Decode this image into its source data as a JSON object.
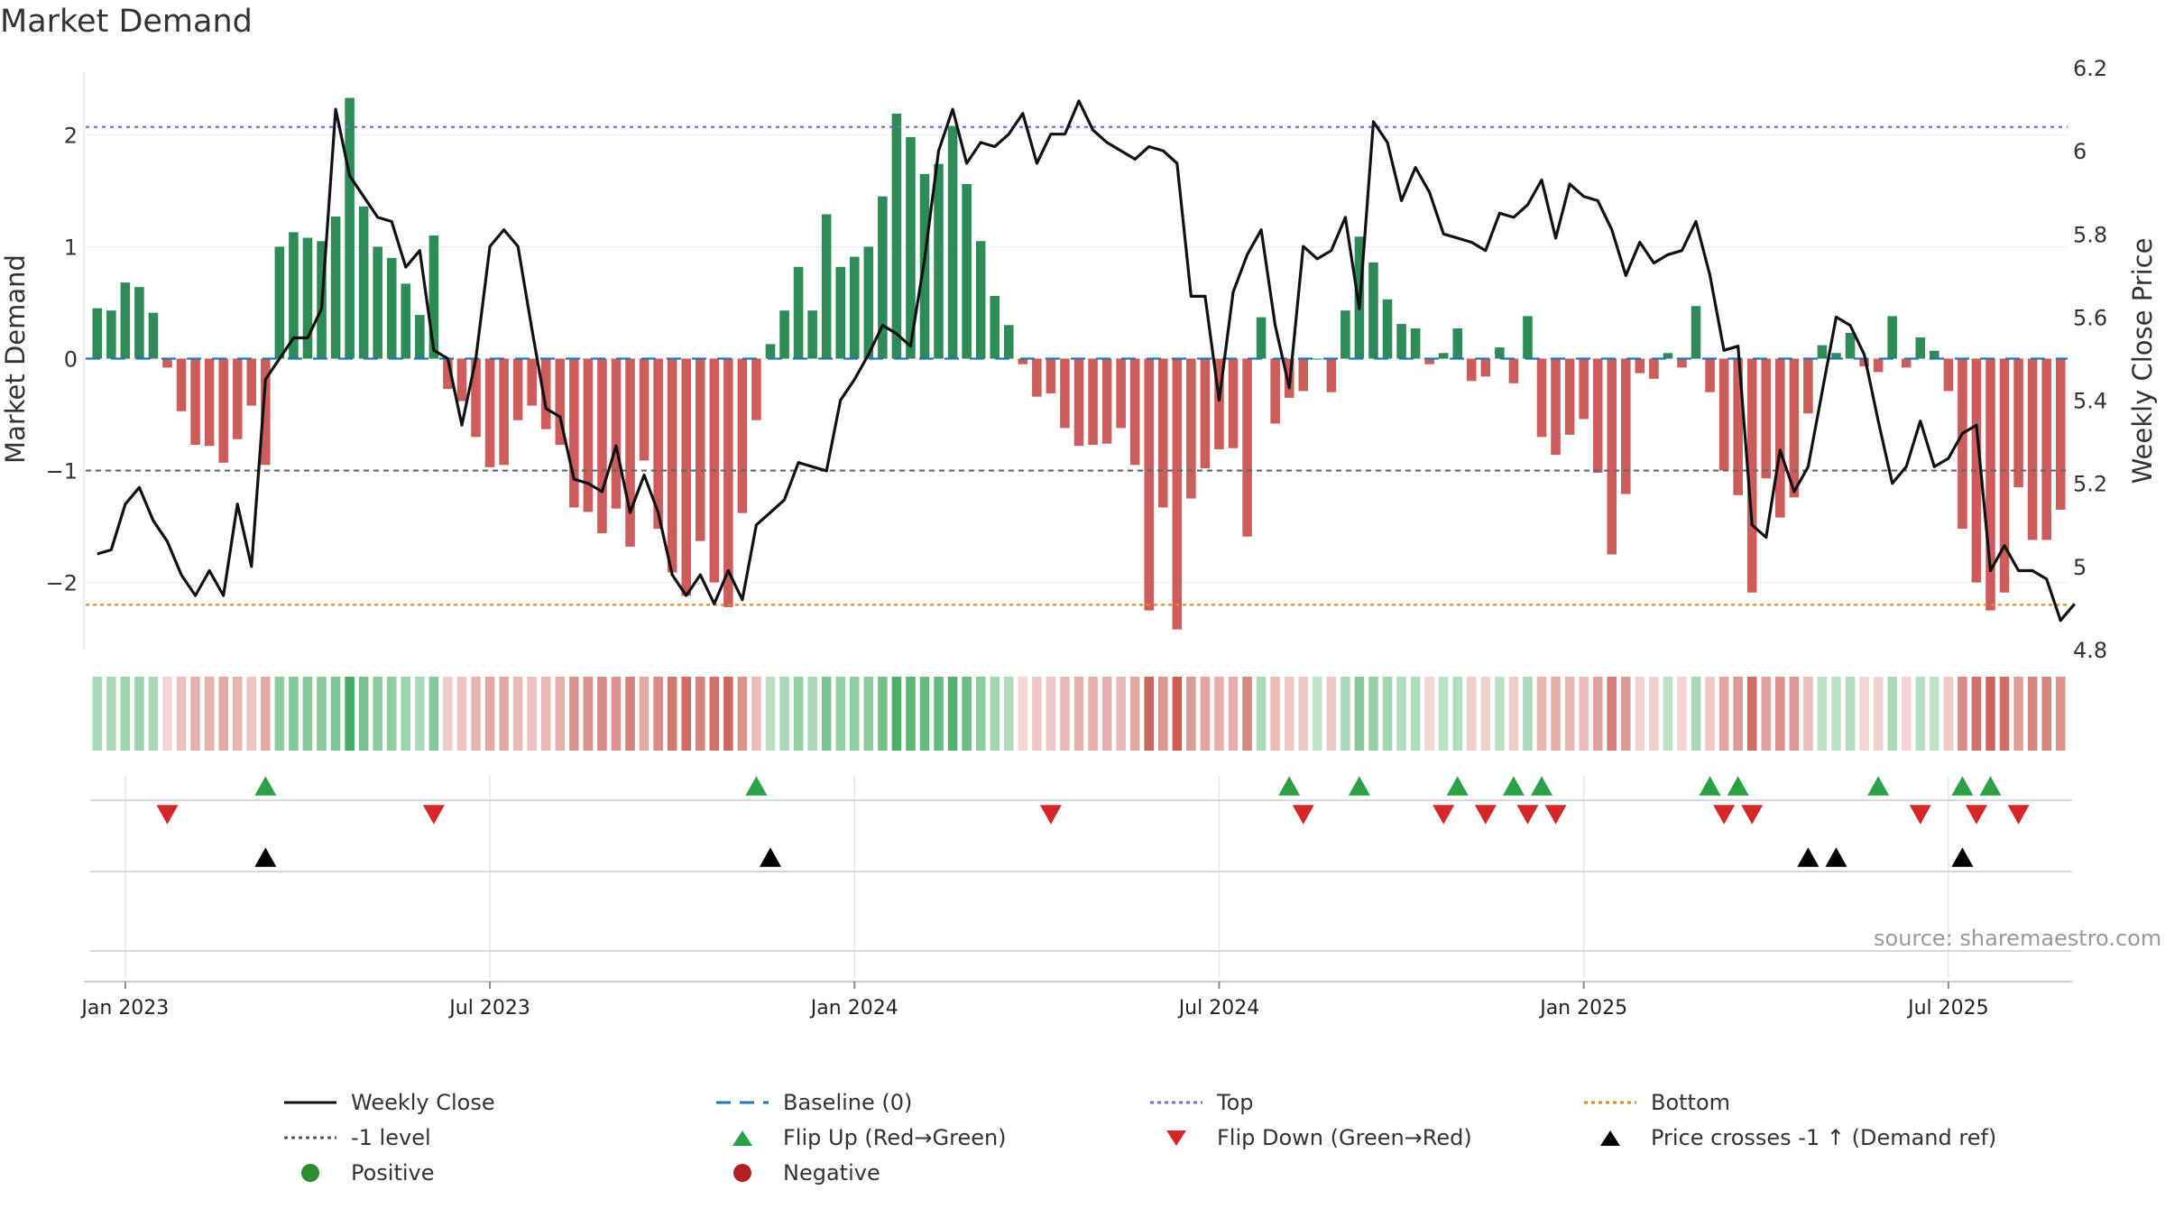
{
  "chart_data": {
    "type": "bar+line",
    "title": "Market Demand",
    "ylabel_left": "Market Demand",
    "ylabel_right": "Weekly Close Price",
    "ylim_left": [
      -2.6,
      2.6
    ],
    "ylim_right": [
      4.8,
      6.2
    ],
    "left_ticks": [
      {
        "v": 2,
        "label": "2"
      },
      {
        "v": 1,
        "label": "1"
      },
      {
        "v": 0,
        "label": "0"
      },
      {
        "v": -1,
        "label": "−1"
      },
      {
        "v": -2,
        "label": "−2"
      }
    ],
    "right_ticks": [
      {
        "v": 6.2,
        "label": "6.2"
      },
      {
        "v": 6.0,
        "label": "6"
      },
      {
        "v": 5.8,
        "label": "5.8"
      },
      {
        "v": 5.6,
        "label": "5.6"
      },
      {
        "v": 5.4,
        "label": "5.4"
      },
      {
        "v": 5.2,
        "label": "5.2"
      },
      {
        "v": 5.0,
        "label": "5"
      },
      {
        "v": 4.8,
        "label": "4.8"
      }
    ],
    "x_ticks": [
      {
        "i": 2,
        "label": "Jan 2023"
      },
      {
        "i": 28,
        "label": "Jul 2023"
      },
      {
        "i": 54,
        "label": "Jan 2024"
      },
      {
        "i": 80,
        "label": "Jul 2024"
      },
      {
        "i": 106,
        "label": "Jan 2025"
      },
      {
        "i": 132,
        "label": "Jul 2025"
      }
    ],
    "top_level": 2.07,
    "minus1_level": -1.0,
    "bottom_level": -2.2,
    "demand": [
      0.45,
      0.43,
      0.68,
      0.64,
      0.41,
      -0.08,
      -0.47,
      -0.77,
      -0.78,
      -0.93,
      -0.72,
      -0.42,
      -0.95,
      1.0,
      1.13,
      1.08,
      1.05,
      1.27,
      2.33,
      1.36,
      1.0,
      0.9,
      0.67,
      0.39,
      1.1,
      -0.27,
      -0.38,
      -0.7,
      -0.97,
      -0.95,
      -0.55,
      -0.42,
      -0.63,
      -0.77,
      -1.33,
      -1.37,
      -1.56,
      -1.34,
      -1.68,
      -0.91,
      -1.52,
      -1.91,
      -2.12,
      -1.63,
      -2.0,
      -2.22,
      -1.38,
      -0.55,
      0.13,
      0.43,
      0.82,
      0.43,
      1.29,
      0.82,
      0.91,
      1.0,
      1.45,
      2.19,
      1.98,
      1.65,
      1.74,
      2.08,
      1.56,
      1.05,
      0.56,
      0.3,
      -0.05,
      -0.34,
      -0.31,
      -0.62,
      -0.78,
      -0.77,
      -0.76,
      -0.62,
      -0.95,
      -2.25,
      -1.33,
      -2.42,
      -1.25,
      -0.98,
      -0.81,
      -0.8,
      -1.59,
      0.37,
      -0.58,
      -0.35,
      -0.29,
      0.0,
      -0.3,
      0.43,
      1.09,
      0.86,
      0.53,
      0.31,
      0.27,
      -0.05,
      0.05,
      0.27,
      -0.2,
      -0.16,
      0.1,
      -0.22,
      0.38,
      -0.7,
      -0.86,
      -0.68,
      -0.54,
      -1.02,
      -1.75,
      -1.21,
      -0.13,
      -0.18,
      0.05,
      -0.08,
      0.47,
      -0.3,
      -1.0,
      -1.22,
      -2.09,
      -1.07,
      -1.42,
      -1.24,
      -0.49,
      0.12,
      0.05,
      0.23,
      -0.07,
      -0.12,
      0.38,
      -0.08,
      0.19,
      0.07,
      -0.29,
      -1.52,
      -2.0,
      -2.25,
      -2.09,
      -1.15,
      -1.62,
      -1.62,
      -1.35
    ],
    "close": [
      5.03,
      5.04,
      5.15,
      5.19,
      5.11,
      5.06,
      4.98,
      4.93,
      4.99,
      4.93,
      5.15,
      5.0,
      5.45,
      5.5,
      5.55,
      5.55,
      5.62,
      6.1,
      5.94,
      5.89,
      5.84,
      5.83,
      5.72,
      5.76,
      5.52,
      5.5,
      5.34,
      5.5,
      5.77,
      5.81,
      5.77,
      5.57,
      5.38,
      5.36,
      5.21,
      5.2,
      5.18,
      5.29,
      5.13,
      5.22,
      5.13,
      4.98,
      4.93,
      4.98,
      4.91,
      4.99,
      4.92,
      5.1,
      5.13,
      5.16,
      5.25,
      5.24,
      5.23,
      5.4,
      5.45,
      5.51,
      5.58,
      5.56,
      5.53,
      5.74,
      6.0,
      6.1,
      5.97,
      6.02,
      6.01,
      6.04,
      6.09,
      5.97,
      6.04,
      6.04,
      6.12,
      6.05,
      6.02,
      6.0,
      5.98,
      6.01,
      6.0,
      5.97,
      5.65,
      5.65,
      5.4,
      5.66,
      5.75,
      5.81,
      5.58,
      5.43,
      5.77,
      5.74,
      5.76,
      5.84,
      5.62,
      6.07,
      6.02,
      5.88,
      5.96,
      5.9,
      5.8,
      5.79,
      5.78,
      5.76,
      5.85,
      5.84,
      5.87,
      5.93,
      5.79,
      5.92,
      5.89,
      5.88,
      5.81,
      5.7,
      5.78,
      5.73,
      5.75,
      5.76,
      5.83,
      5.7,
      5.52,
      5.53,
      5.1,
      5.07,
      5.28,
      5.18,
      5.24,
      5.42,
      5.6,
      5.58,
      5.51,
      5.35,
      5.2,
      5.24,
      5.35,
      5.24,
      5.26,
      5.32,
      5.34,
      4.99,
      5.05,
      4.99,
      4.99,
      4.97,
      4.87,
      4.91
    ],
    "positive_color": "#2e8b57",
    "negative_color": "#cd5c5c",
    "heat_strips": [
      0.45,
      0.43,
      0.68,
      0.64,
      0.41,
      -0.08,
      -0.47,
      -0.77,
      -0.78,
      -0.93,
      -0.72,
      -0.42,
      -0.95
    ],
    "flip_up_indices": [
      12,
      47,
      85,
      90,
      97,
      101,
      103,
      115,
      117,
      127,
      133,
      135
    ],
    "flip_down_indices": [
      5,
      24,
      68,
      86,
      96,
      99,
      102,
      104,
      116,
      118,
      130,
      134,
      137
    ],
    "price_cross_indices": [
      12,
      48,
      122,
      124,
      133
    ],
    "source": "source: sharemaestro.com"
  },
  "legend": [
    {
      "key": "weekly_close",
      "label": "Weekly Close",
      "color": "#111111"
    },
    {
      "key": "baseline",
      "label": "Baseline (0)",
      "color": "#1f77b4"
    },
    {
      "key": "top",
      "label": "Top",
      "color": "#7b68ee"
    },
    {
      "key": "bottom",
      "label": "Bottom",
      "color": "#e08a1e"
    },
    {
      "key": "minus1",
      "label": "-1 level",
      "color": "#555555"
    },
    {
      "key": "flip_up",
      "label": "Flip Up (Red→Green)",
      "color": "#2ca044"
    },
    {
      "key": "flip_down",
      "label": "Flip Down (Green→Red)",
      "color": "#d62728"
    },
    {
      "key": "price_cross",
      "label": "Price crosses -1 ↑ (Demand ref)",
      "color": "#000000"
    },
    {
      "key": "positive",
      "label": "Positive",
      "color": "#2e8b2e"
    },
    {
      "key": "negative",
      "label": "Negative",
      "color": "#b22222"
    }
  ]
}
